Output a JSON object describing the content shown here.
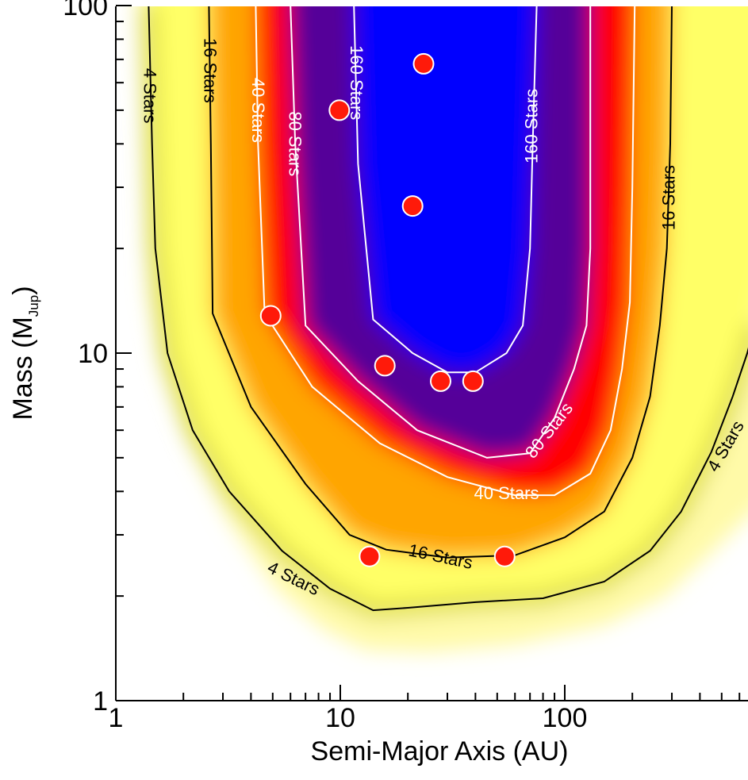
{
  "chart_data": {
    "type": "heatmap",
    "title": "",
    "xlabel": "Semi-Major Axis (AU)",
    "ylabel_main": "Mass (M",
    "ylabel_sub": "Jup",
    "ylabel_close": ")",
    "xscale": "log",
    "yscale": "log",
    "xlim": [
      1,
      700
    ],
    "ylim": [
      1,
      100
    ],
    "grid": false,
    "colors": {
      "low": "#ffff66",
      "mid_low": "#ffa500",
      "mid": "#ff0000",
      "mid_high": "#550099",
      "high": "#0000ff"
    },
    "x_ticks": [
      {
        "value": 1,
        "label": "1"
      },
      {
        "value": 10,
        "label": "10"
      },
      {
        "value": 100,
        "label": "100"
      }
    ],
    "y_ticks": [
      {
        "value": 1,
        "label": "1"
      },
      {
        "value": 10,
        "label": "10"
      },
      {
        "value": 100,
        "label": "100"
      }
    ],
    "contours": [
      {
        "level": 4,
        "label": "4 Stars",
        "color": "#000000",
        "outer": true,
        "path": [
          [
            1.4,
            100
          ],
          [
            1.45,
            40
          ],
          [
            1.5,
            20
          ],
          [
            1.7,
            10
          ],
          [
            2.2,
            6
          ],
          [
            3.2,
            4
          ],
          [
            5.5,
            2.7
          ],
          [
            9,
            2.1
          ],
          [
            14,
            1.82
          ],
          [
            20,
            1.85
          ],
          [
            40,
            1.92
          ],
          [
            80,
            1.97
          ],
          [
            150,
            2.2
          ],
          [
            240,
            2.7
          ],
          [
            330,
            3.5
          ],
          [
            450,
            5.2
          ],
          [
            560,
            7.5
          ],
          [
            650,
            10
          ],
          [
            700,
            12
          ]
        ],
        "labels": [
          {
            "x": 1.42,
            "y": 55,
            "angle": 90
          },
          {
            "x": 6.2,
            "y": 2.25,
            "angle": 26
          },
          {
            "x": 520,
            "y": 5.4,
            "angle": -60
          }
        ]
      },
      {
        "level": 16,
        "label": "16 Stars",
        "color": "#000000",
        "outer": false,
        "path": [
          [
            2.6,
            100
          ],
          [
            2.65,
            40
          ],
          [
            2.7,
            13
          ],
          [
            4,
            7
          ],
          [
            7,
            4.2
          ],
          [
            11,
            3.0
          ],
          [
            16,
            2.72
          ],
          [
            30,
            2.58
          ],
          [
            60,
            2.62
          ],
          [
            100,
            2.95
          ],
          [
            150,
            3.5
          ],
          [
            200,
            5
          ],
          [
            240,
            7.5
          ],
          [
            265,
            12
          ],
          [
            285,
            20
          ],
          [
            295,
            40
          ],
          [
            300,
            100
          ]
        ],
        "labels": [
          {
            "x": 2.63,
            "y": 65,
            "angle": 90
          },
          {
            "x": 28,
            "y": 2.6,
            "angle": 12
          },
          {
            "x": 290,
            "y": 28,
            "angle": -90
          }
        ]
      },
      {
        "level": 40,
        "label": "40 Stars",
        "color": "#ffffff",
        "outer": false,
        "path": [
          [
            4.2,
            100
          ],
          [
            4.3,
            40
          ],
          [
            4.6,
            13
          ],
          [
            7.5,
            8
          ],
          [
            15,
            5.5
          ],
          [
            30,
            4.4
          ],
          [
            60,
            3.9
          ],
          [
            90,
            3.9
          ],
          [
            130,
            4.5
          ],
          [
            160,
            6
          ],
          [
            180,
            9
          ],
          [
            195,
            14
          ],
          [
            200,
            30
          ],
          [
            205,
            100
          ]
        ],
        "labels": [
          {
            "x": 4.3,
            "y": 50,
            "angle": 90
          },
          {
            "x": 55,
            "y": 3.95,
            "angle": 0
          }
        ]
      },
      {
        "level": 80,
        "label": "80 Stars",
        "color": "#ffffff",
        "outer": false,
        "path": [
          [
            6,
            100
          ],
          [
            6.3,
            40
          ],
          [
            7,
            12
          ],
          [
            12,
            8.3
          ],
          [
            22,
            6
          ],
          [
            45,
            5.0
          ],
          [
            70,
            5.15
          ],
          [
            90,
            6.5
          ],
          [
            110,
            9
          ],
          [
            125,
            12
          ],
          [
            130,
            20
          ],
          [
            130,
            100
          ]
        ],
        "labels": [
          {
            "x": 6.3,
            "y": 40,
            "angle": 90
          },
          {
            "x": 85,
            "y": 6.0,
            "angle": -52
          }
        ]
      },
      {
        "level": 160,
        "label": "160 Stars",
        "color": "#ffffff",
        "outer": false,
        "path": [
          [
            11.5,
            100
          ],
          [
            12,
            35
          ],
          [
            14,
            12.5
          ],
          [
            21,
            10
          ],
          [
            30,
            8.8
          ],
          [
            40,
            8.8
          ],
          [
            55,
            10
          ],
          [
            65,
            12
          ],
          [
            70,
            20
          ],
          [
            72,
            40
          ],
          [
            75,
            100
          ]
        ],
        "labels": [
          {
            "x": 11.8,
            "y": 60,
            "angle": 90
          },
          {
            "x": 71,
            "y": 45,
            "angle": -90
          }
        ]
      }
    ],
    "points": [
      {
        "x": 23.5,
        "y": 68
      },
      {
        "x": 9.9,
        "y": 50
      },
      {
        "x": 21,
        "y": 26.5
      },
      {
        "x": 4.9,
        "y": 12.8
      },
      {
        "x": 15.8,
        "y": 9.2
      },
      {
        "x": 28,
        "y": 8.3
      },
      {
        "x": 39,
        "y": 8.3
      },
      {
        "x": 13.5,
        "y": 2.6
      },
      {
        "x": 54,
        "y": 2.6
      }
    ],
    "point_color": "#ff1a0a"
  }
}
